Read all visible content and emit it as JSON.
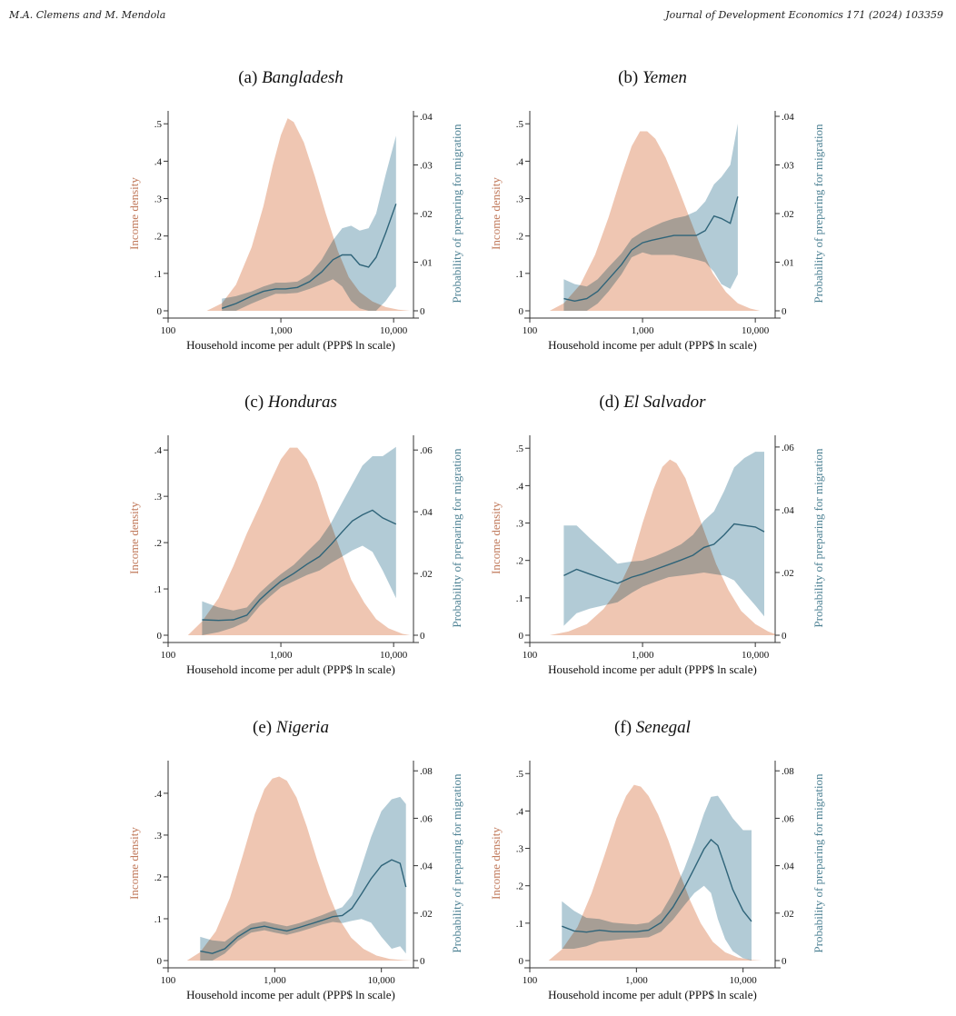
{
  "header": {
    "authors": "M.A. Clemens and M. Mendola",
    "journal": "Journal of Development Economics 171 (2024) 103359"
  },
  "colors": {
    "density_fill": "#efc6b2",
    "band_fill": "#a6c4d0",
    "overlap_fill": "#9a9a9a",
    "line": "#2f6479",
    "left_axis_text": "#c17a5c",
    "right_axis_text": "#4e8294",
    "axis": "#333333"
  },
  "chart_data": [
    {
      "type": "area",
      "title_prefix": "(a)",
      "title_name": "Bangladesh",
      "xlabel": "Household income per adult (PPP$ ln scale)",
      "ylabel_left": "Income density",
      "ylabel_right": "Probability of preparing for migration",
      "x_scale": "log",
      "xlim": [
        100,
        15000
      ],
      "x_ticks": [
        100,
        1000,
        10000
      ],
      "x_tick_labels": [
        "100",
        "1,000",
        "10,000"
      ],
      "ylim_left": [
        0,
        0.52
      ],
      "y_ticks_left": [
        0,
        0.1,
        0.2,
        0.3,
        0.4,
        0.5
      ],
      "y_tick_labels_left": [
        "0",
        ".1",
        ".2",
        ".3",
        ".4",
        ".5"
      ],
      "ylim_right": [
        0,
        0.04
      ],
      "y_ticks_right": [
        0,
        0.01,
        0.02,
        0.03,
        0.04
      ],
      "y_tick_labels_right": [
        "0",
        ".01",
        ".02",
        ".03",
        ".04"
      ],
      "density": {
        "x": [
          220,
          300,
          400,
          550,
          700,
          850,
          1000,
          1150,
          1300,
          1600,
          2000,
          2500,
          3200,
          4000,
          5000,
          6500,
          8500,
          11000,
          14000
        ],
        "y": [
          0,
          0.02,
          0.07,
          0.17,
          0.28,
          0.39,
          0.47,
          0.515,
          0.505,
          0.45,
          0.36,
          0.26,
          0.16,
          0.09,
          0.05,
          0.025,
          0.01,
          0.003,
          0
        ]
      },
      "probability": {
        "x": [
          300,
          400,
          550,
          700,
          900,
          1100,
          1400,
          1800,
          2300,
          2900,
          3500,
          4200,
          5000,
          6000,
          7000,
          8500,
          10500
        ],
        "mean": [
          0.0005,
          0.0015,
          0.003,
          0.004,
          0.0045,
          0.0045,
          0.0048,
          0.006,
          0.008,
          0.0105,
          0.0115,
          0.0115,
          0.0095,
          0.009,
          0.011,
          0.016,
          0.022
        ],
        "lower": [
          0,
          0,
          0.0015,
          0.0025,
          0.0035,
          0.0035,
          0.0037,
          0.0045,
          0.0055,
          0.0065,
          0.005,
          0.002,
          0.0005,
          0,
          0,
          0.002,
          0.005
        ],
        "upper": [
          0.0025,
          0.003,
          0.004,
          0.005,
          0.0058,
          0.0058,
          0.006,
          0.0075,
          0.0105,
          0.0145,
          0.017,
          0.0175,
          0.0165,
          0.017,
          0.02,
          0.028,
          0.036
        ]
      }
    },
    {
      "type": "area",
      "title_prefix": "(b)",
      "title_name": "Yemen",
      "xlabel": "Household income per adult (PPP$ ln scale)",
      "ylabel_left": "Income density",
      "ylabel_right": "Probability of preparing for migration",
      "x_scale": "log",
      "xlim": [
        100,
        15000
      ],
      "x_ticks": [
        100,
        1000,
        10000
      ],
      "x_tick_labels": [
        "100",
        "1,000",
        "10,000"
      ],
      "ylim_left": [
        0,
        0.52
      ],
      "y_ticks_left": [
        0,
        0.1,
        0.2,
        0.3,
        0.4,
        0.5
      ],
      "y_tick_labels_left": [
        "0",
        ".1",
        ".2",
        ".3",
        ".4",
        ".5"
      ],
      "ylim_right": [
        0,
        0.04
      ],
      "y_ticks_right": [
        0,
        0.01,
        0.02,
        0.03,
        0.04
      ],
      "y_tick_labels_right": [
        "0",
        ".01",
        ".02",
        ".03",
        ".04"
      ],
      "density": {
        "x": [
          150,
          200,
          280,
          380,
          500,
          650,
          800,
          950,
          1100,
          1300,
          1600,
          2000,
          2600,
          3300,
          4200,
          5500,
          7000,
          9000,
          11000
        ],
        "y": [
          0,
          0.02,
          0.07,
          0.15,
          0.25,
          0.36,
          0.44,
          0.48,
          0.48,
          0.46,
          0.41,
          0.34,
          0.25,
          0.17,
          0.1,
          0.05,
          0.02,
          0.006,
          0
        ]
      },
      "probability": {
        "x": [
          200,
          250,
          320,
          400,
          500,
          650,
          800,
          1000,
          1200,
          1500,
          1900,
          2400,
          3000,
          3600,
          4300,
          5000,
          6000,
          7000
        ],
        "mean": [
          0.0025,
          0.002,
          0.0025,
          0.004,
          0.0065,
          0.0095,
          0.0125,
          0.014,
          0.0145,
          0.015,
          0.0155,
          0.0155,
          0.0155,
          0.0165,
          0.0195,
          0.019,
          0.018,
          0.0235
        ],
        "lower": [
          0,
          0,
          0,
          0.0015,
          0.004,
          0.0075,
          0.011,
          0.012,
          0.0115,
          0.0115,
          0.0115,
          0.011,
          0.0105,
          0.01,
          0.008,
          0.0055,
          0.0045,
          0.0075
        ],
        "upper": [
          0.0065,
          0.0055,
          0.005,
          0.0065,
          0.009,
          0.0118,
          0.0148,
          0.0163,
          0.0172,
          0.0182,
          0.019,
          0.0195,
          0.0205,
          0.0225,
          0.026,
          0.0275,
          0.03,
          0.0385
        ]
      }
    },
    {
      "type": "area",
      "title_prefix": "(c)",
      "title_name": "Honduras",
      "xlabel": "Household income per adult (PPP$ ln scale)",
      "ylabel_left": "Income density",
      "ylabel_right": "Probability of preparing for migration",
      "x_scale": "log",
      "xlim": [
        100,
        15000
      ],
      "x_ticks": [
        100,
        1000,
        10000
      ],
      "x_tick_labels": [
        "100",
        "1,000",
        "10,000"
      ],
      "ylim_left": [
        0,
        0.42
      ],
      "y_ticks_left": [
        0,
        0.1,
        0.2,
        0.3,
        0.4
      ],
      "y_tick_labels_left": [
        "0",
        ".1",
        ".2",
        ".3",
        ".4"
      ],
      "ylim_right": [
        0,
        0.063
      ],
      "y_ticks_right": [
        0,
        0.02,
        0.04,
        0.06
      ],
      "y_tick_labels_right": [
        "0",
        ".02",
        ".04",
        ".06"
      ],
      "density": {
        "x": [
          150,
          200,
          280,
          380,
          500,
          650,
          800,
          1000,
          1200,
          1400,
          1700,
          2100,
          2600,
          3300,
          4200,
          5500,
          7000,
          9000,
          12000,
          14000
        ],
        "y": [
          0,
          0.03,
          0.08,
          0.15,
          0.22,
          0.28,
          0.33,
          0.38,
          0.405,
          0.405,
          0.38,
          0.33,
          0.26,
          0.19,
          0.12,
          0.07,
          0.035,
          0.015,
          0.003,
          0
        ]
      },
      "probability": {
        "x": [
          200,
          280,
          380,
          500,
          650,
          800,
          1000,
          1300,
          1700,
          2200,
          2800,
          3500,
          4300,
          5300,
          6500,
          8000,
          10500
        ],
        "mean": [
          0.005,
          0.0048,
          0.005,
          0.0065,
          0.0115,
          0.0145,
          0.0175,
          0.02,
          0.023,
          0.0255,
          0.0295,
          0.0335,
          0.037,
          0.039,
          0.0405,
          0.038,
          0.036
        ],
        "lower": [
          0,
          0.001,
          0.0025,
          0.0045,
          0.0095,
          0.0125,
          0.0155,
          0.0175,
          0.0195,
          0.021,
          0.0235,
          0.0255,
          0.0275,
          0.029,
          0.027,
          0.021,
          0.012
        ],
        "upper": [
          0.011,
          0.009,
          0.008,
          0.009,
          0.0138,
          0.0168,
          0.0198,
          0.0228,
          0.027,
          0.031,
          0.0365,
          0.043,
          0.049,
          0.055,
          0.058,
          0.058,
          0.061
        ]
      }
    },
    {
      "type": "area",
      "title_prefix": "(d)",
      "title_name": "El Salvador",
      "xlabel": "Household income per adult (PPP$ ln scale)",
      "ylabel_left": "Income density",
      "ylabel_right": "Probability of preparing for migration",
      "x_scale": "log",
      "xlim": [
        100,
        15000
      ],
      "x_ticks": [
        100,
        1000,
        10000
      ],
      "x_tick_labels": [
        "100",
        "1,000",
        "10,000"
      ],
      "ylim_left": [
        0,
        0.52
      ],
      "y_ticks_left": [
        0,
        0.1,
        0.2,
        0.3,
        0.4,
        0.5
      ],
      "y_tick_labels_left": [
        "0",
        ".1",
        ".2",
        ".3",
        ".4",
        ".5"
      ],
      "ylim_right": [
        0,
        0.062
      ],
      "y_ticks_right": [
        0,
        0.02,
        0.04,
        0.06
      ],
      "y_tick_labels_right": [
        "0",
        ".02",
        ".04",
        ".06"
      ],
      "density": {
        "x": [
          150,
          220,
          320,
          450,
          600,
          800,
          1000,
          1250,
          1500,
          1750,
          2000,
          2400,
          2900,
          3600,
          4500,
          5800,
          7500,
          10000,
          13000,
          16000
        ],
        "y": [
          0,
          0.01,
          0.03,
          0.07,
          0.12,
          0.2,
          0.3,
          0.39,
          0.45,
          0.47,
          0.46,
          0.42,
          0.35,
          0.27,
          0.19,
          0.12,
          0.065,
          0.03,
          0.01,
          0
        ]
      },
      "probability": {
        "x": [
          200,
          260,
          340,
          450,
          600,
          800,
          1000,
          1300,
          1700,
          2200,
          2800,
          3500,
          4300,
          5300,
          6500,
          8000,
          10000,
          12000
        ],
        "mean": [
          0.019,
          0.021,
          0.0195,
          0.018,
          0.0165,
          0.0185,
          0.0195,
          0.021,
          0.0225,
          0.024,
          0.0255,
          0.028,
          0.029,
          0.032,
          0.0355,
          0.035,
          0.0345,
          0.033
        ],
        "lower": [
          0.003,
          0.007,
          0.0085,
          0.0095,
          0.0105,
          0.0135,
          0.0155,
          0.017,
          0.0185,
          0.019,
          0.0195,
          0.02,
          0.0195,
          0.019,
          0.0175,
          0.0135,
          0.0095,
          0.006
        ],
        "upper": [
          0.035,
          0.035,
          0.031,
          0.027,
          0.0228,
          0.0235,
          0.0238,
          0.0252,
          0.027,
          0.029,
          0.032,
          0.0365,
          0.0395,
          0.046,
          0.0535,
          0.0565,
          0.0585,
          0.0585
        ]
      }
    },
    {
      "type": "area",
      "title_prefix": "(e)",
      "title_name": "Nigeria",
      "xlabel": "Household income per adult (PPP$ ln scale)",
      "ylabel_left": "Income density",
      "ylabel_right": "Probability of preparing for migration",
      "x_scale": "log",
      "xlim": [
        100,
        20000
      ],
      "x_ticks": [
        100,
        1000,
        10000
      ],
      "x_tick_labels": [
        "100",
        "1,000",
        "10,000"
      ],
      "ylim_left": [
        0,
        0.465
      ],
      "y_ticks_left": [
        0,
        0.1,
        0.2,
        0.3,
        0.4
      ],
      "y_tick_labels_left": [
        "0",
        ".1",
        ".2",
        ".3",
        ".4"
      ],
      "ylim_right": [
        0,
        0.082
      ],
      "y_ticks_right": [
        0,
        0.02,
        0.04,
        0.06,
        0.08
      ],
      "y_tick_labels_right": [
        "0",
        ".02",
        ".04",
        ".06",
        ".08"
      ],
      "density": {
        "x": [
          150,
          200,
          280,
          380,
          500,
          650,
          800,
          950,
          1100,
          1300,
          1600,
          2000,
          2500,
          3200,
          4000,
          5200,
          6800,
          9000,
          12000,
          16000,
          20000
        ],
        "y": [
          0,
          0.02,
          0.07,
          0.15,
          0.25,
          0.35,
          0.41,
          0.435,
          0.44,
          0.43,
          0.39,
          0.32,
          0.24,
          0.16,
          0.1,
          0.055,
          0.028,
          0.012,
          0.004,
          0.001,
          0
        ]
      },
      "probability": {
        "x": [
          200,
          260,
          340,
          450,
          600,
          800,
          1000,
          1300,
          1700,
          2200,
          2800,
          3500,
          4300,
          5300,
          6500,
          8000,
          10000,
          12500,
          15000,
          17000
        ],
        "mean": [
          0.004,
          0.003,
          0.005,
          0.01,
          0.0135,
          0.0145,
          0.0135,
          0.0125,
          0.014,
          0.0155,
          0.017,
          0.0185,
          0.019,
          0.022,
          0.028,
          0.0345,
          0.04,
          0.0425,
          0.041,
          0.031
        ],
        "lower": [
          0,
          0,
          0.003,
          0.0082,
          0.0118,
          0.0128,
          0.0118,
          0.0108,
          0.0122,
          0.0137,
          0.0152,
          0.0163,
          0.0158,
          0.0168,
          0.0175,
          0.016,
          0.01,
          0.005,
          0.006,
          0.003
        ],
        "upper": [
          0.01,
          0.0085,
          0.008,
          0.012,
          0.0155,
          0.0165,
          0.0155,
          0.0145,
          0.0158,
          0.0175,
          0.0192,
          0.021,
          0.0225,
          0.0275,
          0.0395,
          0.052,
          0.063,
          0.068,
          0.069,
          0.066
        ]
      }
    },
    {
      "type": "area",
      "title_prefix": "(f)",
      "title_name": "Senegal",
      "xlabel": "Household income per adult (PPP$ ln scale)",
      "ylabel_left": "Income density",
      "ylabel_right": "Probability of preparing for migration",
      "x_scale": "log",
      "xlim": [
        100,
        20000
      ],
      "x_ticks": [
        100,
        1000,
        10000
      ],
      "x_tick_labels": [
        "100",
        "1,000",
        "10,000"
      ],
      "ylim_left": [
        0,
        0.52
      ],
      "y_ticks_left": [
        0,
        0.1,
        0.2,
        0.3,
        0.4,
        0.5
      ],
      "y_tick_labels_left": [
        "0",
        ".1",
        ".2",
        ".3",
        ".4",
        ".5"
      ],
      "ylim_right": [
        0,
        0.082
      ],
      "y_ticks_right": [
        0,
        0.02,
        0.04,
        0.06,
        0.08
      ],
      "y_tick_labels_right": [
        "0",
        ".02",
        ".04",
        ".06",
        ".08"
      ],
      "density": {
        "x": [
          150,
          200,
          280,
          380,
          500,
          650,
          800,
          950,
          1100,
          1300,
          1600,
          2000,
          2500,
          3200,
          4000,
          5200,
          6800,
          9000,
          12000,
          15000
        ],
        "y": [
          0,
          0.03,
          0.09,
          0.18,
          0.28,
          0.38,
          0.44,
          0.47,
          0.465,
          0.44,
          0.39,
          0.32,
          0.24,
          0.16,
          0.1,
          0.05,
          0.022,
          0.008,
          0.002,
          0
        ]
      },
      "probability": {
        "x": [
          200,
          260,
          340,
          450,
          600,
          800,
          1000,
          1300,
          1700,
          2200,
          2800,
          3500,
          4300,
          5000,
          5800,
          6800,
          8000,
          10000,
          12000
        ],
        "mean": [
          0.0145,
          0.0125,
          0.012,
          0.0128,
          0.0122,
          0.0122,
          0.0122,
          0.0128,
          0.016,
          0.0225,
          0.0305,
          0.039,
          0.047,
          0.051,
          0.0485,
          0.0395,
          0.03,
          0.021,
          0.0165
        ],
        "lower": [
          0.005,
          0.005,
          0.006,
          0.008,
          0.0085,
          0.0092,
          0.0095,
          0.0098,
          0.0122,
          0.0172,
          0.0232,
          0.0285,
          0.0315,
          0.0285,
          0.0175,
          0.009,
          0.004,
          0.001,
          0
        ],
        "upper": [
          0.025,
          0.021,
          0.018,
          0.0175,
          0.016,
          0.0155,
          0.0152,
          0.016,
          0.02,
          0.0285,
          0.0385,
          0.05,
          0.062,
          0.069,
          0.0695,
          0.065,
          0.06,
          0.055,
          0.055
        ]
      }
    }
  ]
}
